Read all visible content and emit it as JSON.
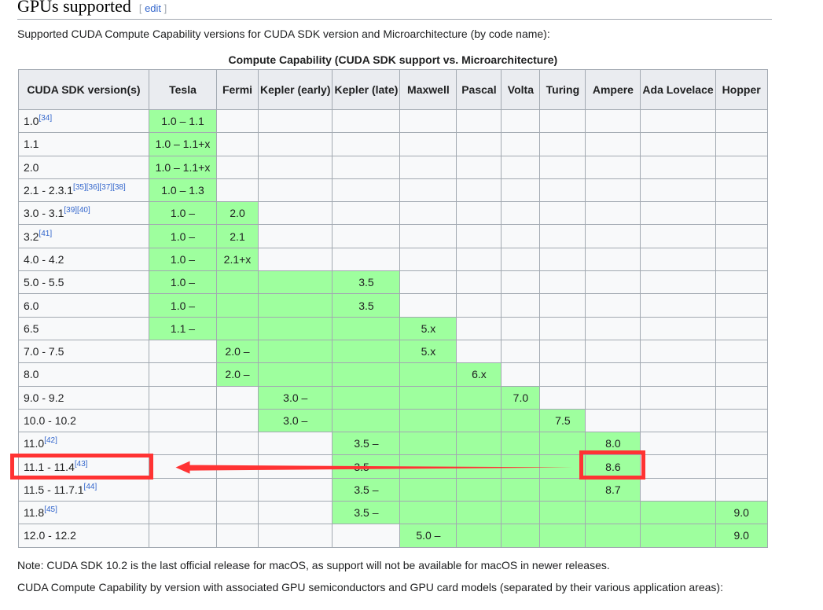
{
  "section": {
    "title": "GPUs supported",
    "edit_label": "edit"
  },
  "intro": "Supported CUDA Compute Capability versions for CUDA SDK version and Microarchitecture (by code name):",
  "table": {
    "caption": "Compute Capability (CUDA SDK support vs. Microarchitecture)",
    "headers": [
      "CUDA SDK version(s)",
      "Tesla",
      "Fermi",
      "Kepler (early)",
      "Kepler (late)",
      "Maxwell",
      "Pascal",
      "Volta",
      "Turing",
      "Ampere",
      "Ada Lovelace",
      "Hopper"
    ],
    "rows": [
      {
        "version": "1.0",
        "ref": "[34]",
        "green": [
          0,
          0
        ],
        "cells": {
          "0": "1.0 – 1.1"
        }
      },
      {
        "version": "1.1",
        "ref": "",
        "green": [
          0,
          0
        ],
        "cells": {
          "0": "1.0 – 1.1+x"
        }
      },
      {
        "version": "2.0",
        "ref": "",
        "green": [
          0,
          0
        ],
        "cells": {
          "0": "1.0 – 1.1+x"
        }
      },
      {
        "version": "2.1 - 2.3.1",
        "ref": "[35][36][37][38]",
        "green": [
          0,
          0
        ],
        "cells": {
          "0": "1.0 – 1.3"
        }
      },
      {
        "version": "3.0 - 3.1",
        "ref": "[39][40]",
        "green": [
          0,
          1
        ],
        "cells": {
          "0": "1.0 –",
          "1": "2.0"
        }
      },
      {
        "version": "3.2",
        "ref": "[41]",
        "green": [
          0,
          1
        ],
        "cells": {
          "0": "1.0 –",
          "1": "2.1"
        }
      },
      {
        "version": "4.0 - 4.2",
        "ref": "",
        "green": [
          0,
          1
        ],
        "cells": {
          "0": "1.0 –",
          "1": "2.1+x"
        }
      },
      {
        "version": "5.0 - 5.5",
        "ref": "",
        "green": [
          0,
          3
        ],
        "cells": {
          "0": "1.0 –",
          "3": "3.5"
        }
      },
      {
        "version": "6.0",
        "ref": "",
        "green": [
          0,
          3
        ],
        "cells": {
          "0": "1.0 –",
          "3": "3.5"
        }
      },
      {
        "version": "6.5",
        "ref": "",
        "green": [
          0,
          4
        ],
        "cells": {
          "0": "1.1 –",
          "4": "5.x"
        }
      },
      {
        "version": "7.0 - 7.5",
        "ref": "",
        "green": [
          1,
          4
        ],
        "cells": {
          "1": "2.0 –",
          "4": "5.x"
        }
      },
      {
        "version": "8.0",
        "ref": "",
        "green": [
          1,
          5
        ],
        "cells": {
          "1": "2.0 –",
          "5": "6.x"
        }
      },
      {
        "version": "9.0 - 9.2",
        "ref": "",
        "green": [
          2,
          6
        ],
        "cells": {
          "2": "3.0 –",
          "6": "7.0"
        }
      },
      {
        "version": "10.0 - 10.2",
        "ref": "",
        "green": [
          2,
          7
        ],
        "cells": {
          "2": "3.0 –",
          "7": "7.5"
        }
      },
      {
        "version": "11.0",
        "ref": "[42]",
        "green": [
          3,
          8
        ],
        "cells": {
          "3": "3.5 –",
          "8": "8.0"
        }
      },
      {
        "version": "11.1 - 11.4",
        "ref": "[43]",
        "green": [
          3,
          8
        ],
        "cells": {
          "3": "3.5 –",
          "8": "8.6"
        }
      },
      {
        "version": "11.5 - 11.7.1",
        "ref": "[44]",
        "green": [
          3,
          8
        ],
        "cells": {
          "3": "3.5 –",
          "8": "8.7"
        }
      },
      {
        "version": "11.8",
        "ref": "[45]",
        "green": [
          3,
          10
        ],
        "cells": {
          "3": "3.5 –",
          "10": "9.0"
        }
      },
      {
        "version": "12.0 - 12.2",
        "ref": "",
        "green": [
          4,
          10
        ],
        "cells": {
          "4": "5.0 –",
          "10": "9.0"
        }
      }
    ]
  },
  "note": "Note: CUDA SDK 10.2 is the last official release for macOS, as support will not be available for macOS in newer releases.",
  "footer_text": "CUDA Compute Capability by version with associated GPU semiconductors and GPU card models (separated by their various application areas):",
  "colors": {
    "supported": "#9eff9e",
    "annotation": "#ff3333",
    "link": "#3366cc"
  }
}
